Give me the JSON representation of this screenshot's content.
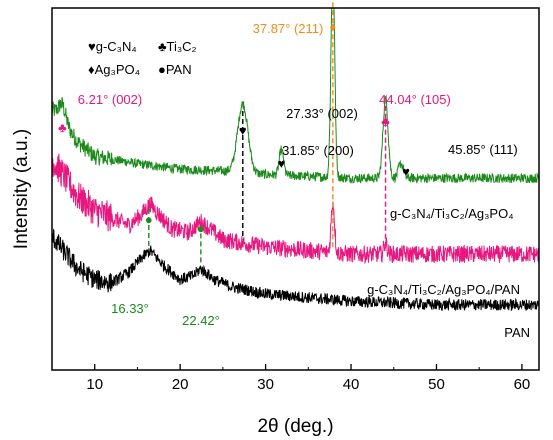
{
  "chart_data": {
    "type": "line",
    "title": "",
    "xlabel": "2θ (deg.)",
    "ylabel": "Intensity (a.u.)",
    "xlim": [
      5,
      62
    ],
    "ylim": [
      0,
      100
    ],
    "x_ticks": [
      "10",
      "20",
      "30",
      "40",
      "50",
      "60"
    ],
    "y_ticks_shown": false,
    "grid": false,
    "series": [
      {
        "name": "g-C3N4/Ti3C2/Ag3PO4",
        "color": "#1b8a1b",
        "label_text": "g-C₃N₄/Ti₃C₂/Ag₃PO₄",
        "baseline": 53,
        "profile": [
          [
            5,
            72
          ],
          [
            6,
            70
          ],
          [
            8,
            63
          ],
          [
            10,
            59
          ],
          [
            15,
            57
          ],
          [
            20,
            55.5
          ],
          [
            25,
            55
          ],
          [
            30,
            54
          ],
          [
            40,
            53
          ],
          [
            50,
            53
          ],
          [
            62,
            53
          ]
        ],
        "peaks": [
          [
            6.21,
            4,
            0.4
          ],
          [
            27.33,
            19,
            0.6
          ],
          [
            31.85,
            7,
            0.25
          ],
          [
            37.87,
            57,
            0.22
          ],
          [
            44.04,
            22,
            0.3
          ],
          [
            45.85,
            4,
            0.3
          ]
        ]
      },
      {
        "name": "g-C3N4/Ti3C2/Ag3PO4/PAN",
        "color": "#e8177f",
        "label_text": "g-C₃N₄/Ti₃C₂/Ag₃PO₄/PAN",
        "baseline": 30,
        "profile": [
          [
            5,
            58
          ],
          [
            6,
            55
          ],
          [
            8,
            48
          ],
          [
            10,
            44
          ],
          [
            12,
            42
          ],
          [
            14,
            40
          ],
          [
            15.5,
            43
          ],
          [
            16.5,
            46
          ],
          [
            17.5,
            43
          ],
          [
            19,
            39
          ],
          [
            21,
            38
          ],
          [
            22.4,
            41
          ],
          [
            23.5,
            39
          ],
          [
            25,
            36
          ],
          [
            30,
            34
          ],
          [
            35,
            33
          ],
          [
            40,
            32
          ],
          [
            50,
            32
          ],
          [
            62,
            32
          ]
        ],
        "peaks": [
          [
            37.87,
            14,
            0.2
          ],
          [
            44.04,
            3,
            0.2
          ]
        ]
      },
      {
        "name": "PAN",
        "color": "#000000",
        "label_text": "PAN",
        "baseline": 15,
        "profile": [
          [
            5,
            37
          ],
          [
            6,
            34
          ],
          [
            8,
            28
          ],
          [
            10,
            25
          ],
          [
            12,
            24
          ],
          [
            14,
            27
          ],
          [
            15.5,
            31
          ],
          [
            16.5,
            33
          ],
          [
            18,
            29
          ],
          [
            20,
            25
          ],
          [
            21.5,
            26
          ],
          [
            22.4,
            28
          ],
          [
            24,
            25
          ],
          [
            26,
            23
          ],
          [
            30,
            21
          ],
          [
            40,
            19
          ],
          [
            50,
            18
          ],
          [
            62,
            18
          ]
        ],
        "peaks": []
      }
    ],
    "legend": {
      "placement": "top-left",
      "entries": [
        {
          "symbol": "♥",
          "name": "g-C₃N₄"
        },
        {
          "symbol": "♣",
          "name": "Ti₃C₂"
        },
        {
          "symbol": "♦",
          "name": "Ag₃PO₄"
        },
        {
          "symbol": "●",
          "name": "PAN"
        }
      ]
    },
    "peak_annotations": [
      {
        "x": 6.21,
        "text": "6.21° (002)",
        "color": "#e8177f",
        "symbol": "♣",
        "series": "g-C3N4/Ti3C2/Ag3PO4"
      },
      {
        "x": 27.33,
        "text": "27.33° (002)",
        "color": "#000000",
        "symbol": "♥",
        "series": "g-C3N4/Ti3C2/Ag3PO4"
      },
      {
        "x": 31.85,
        "text": "31.85° (200)",
        "color": "#000000",
        "symbol": "♥",
        "series": "g-C3N4/Ti3C2/Ag3PO4"
      },
      {
        "x": 37.87,
        "text": "37.87° (211)",
        "color": "#f08c1a",
        "symbol": "♦",
        "series": "g-C3N4/Ti3C2/Ag3PO4"
      },
      {
        "x": 44.04,
        "text": "44.04° (105)",
        "color": "#e8177f",
        "symbol": "♣",
        "series": "g-C3N4/Ti3C2/Ag3PO4"
      },
      {
        "x": 45.85,
        "text": "45.85° (111)",
        "color": "#000000",
        "symbol": "♥",
        "series": "g-C3N4/Ti3C2/Ag3PO4"
      },
      {
        "x": 16.33,
        "text": "16.33°",
        "color": "#1b8a1b",
        "symbol": "●",
        "series": "g-C3N4/Ti3C2/Ag3PO4/PAN"
      },
      {
        "x": 22.42,
        "text": "22.42°",
        "color": "#1b8a1b",
        "symbol": "●",
        "series": "g-C3N4/Ti3C2/Ag3PO4/PAN"
      }
    ],
    "dashed_guides": [
      {
        "x": 27.33,
        "color": "#000000"
      },
      {
        "x": 37.87,
        "color": "#f08c1a"
      },
      {
        "x": 44.04,
        "color": "#e8177f"
      },
      {
        "x": 16.33,
        "color": "#1b8a1b"
      },
      {
        "x": 22.42,
        "color": "#1b8a1b"
      }
    ]
  }
}
